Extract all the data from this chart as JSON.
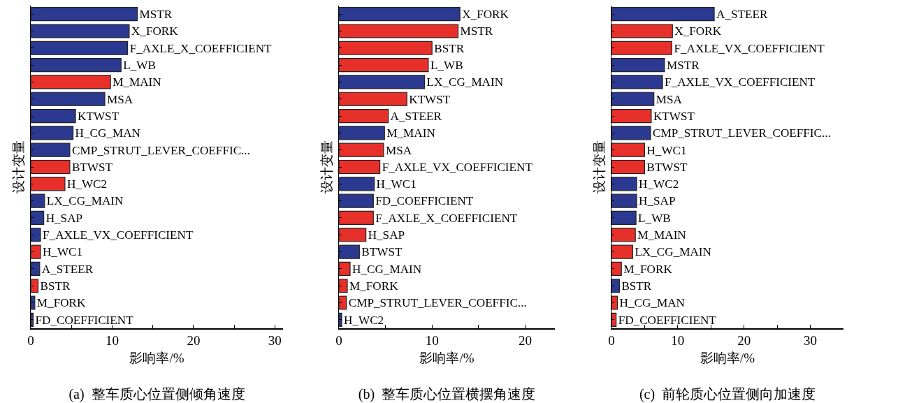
{
  "chart_data": [
    {
      "type": "bar",
      "orientation": "horizontal",
      "title": "(a)  整车质心位置侧倾角速度",
      "xlabel": "影响率/%",
      "ylabel": "设计变量",
      "grid": false,
      "legend": false,
      "tick_labels": "x",
      "categories": [
        "MSTR",
        "X_FORK",
        "F_AXLE_X_COEFFICIENT",
        "L_WB",
        "M_MAIN",
        "MSA",
        "KTWST",
        "H_CG_MAN",
        "CMP_STRUT_LEVER_COEFFIC...",
        "BTWST",
        "H_WC2",
        "LX_CG_MAIN",
        "H_SAP",
        "F_AXLE_VX_COEFFICIENT",
        "H_WC1",
        "A_STEER",
        "BSTR",
        "M_FORK",
        "FD_COEFFICIENT"
      ],
      "values": [
        13.1,
        12.1,
        11.9,
        11.1,
        9.8,
        9.1,
        5.5,
        5.2,
        4.8,
        4.8,
        4.2,
        1.7,
        1.6,
        1.2,
        1.2,
        1.1,
        0.9,
        0.5,
        0.3
      ],
      "colors": [
        "#2b3990",
        "#2b3990",
        "#2b3990",
        "#2b3990",
        "#e8302a",
        "#2b3990",
        "#2b3990",
        "#2b3990",
        "#2b3990",
        "#e8302a",
        "#e8302a",
        "#2b3990",
        "#2b3990",
        "#2b3990",
        "#e8302a",
        "#2b3990",
        "#e8302a",
        "#2b3990",
        "#2b3990"
      ],
      "xlim": [
        0,
        31
      ],
      "xticks": [
        0,
        {
          "value": 5,
          "label": null
        },
        10,
        {
          "value": 15,
          "label": null
        },
        20,
        {
          "value": 25,
          "label": null
        },
        30
      ]
    },
    {
      "type": "bar",
      "orientation": "horizontal",
      "title": "(b)  整车质心位置横摆角速度",
      "xlabel": "影响率/%",
      "ylabel": "设计变量",
      "grid": false,
      "legend": false,
      "tick_labels": "x",
      "categories": [
        "X_FORK",
        "MSTR",
        "BSTR",
        "L_WB",
        "LX_CG_MAIN",
        "KTWST",
        "A_STEER",
        "M_MAIN",
        "MSA",
        "F_AXLE_VX_COEFFICIENT",
        "H_WC1",
        "FD_COEFFICIENT",
        "F_AXLE_X_COEFFICIENT",
        "H_SAP",
        "BTWST",
        "H_CG_MAIN",
        "M_FORK",
        "CMP_STRUT_LEVER_COEFFIC...",
        "H_WC2"
      ],
      "values": [
        13.0,
        12.8,
        10.0,
        9.6,
        9.2,
        7.3,
        5.3,
        4.9,
        4.8,
        4.4,
        3.8,
        3.7,
        3.7,
        2.9,
        2.2,
        1.2,
        0.9,
        0.8,
        0.3
      ],
      "colors": [
        "#2b3990",
        "#e8302a",
        "#e8302a",
        "#e8302a",
        "#2b3990",
        "#e8302a",
        "#e8302a",
        "#2b3990",
        "#e8302a",
        "#e8302a",
        "#2b3990",
        "#2b3990",
        "#e8302a",
        "#e8302a",
        "#2b3990",
        "#e8302a",
        "#e8302a",
        "#e8302a",
        "#2b3990"
      ],
      "xlim": [
        0,
        23.2
      ],
      "xticks": [
        0,
        {
          "value": 5,
          "label": null
        },
        10,
        {
          "value": 15,
          "label": null
        },
        20
      ]
    },
    {
      "type": "bar",
      "orientation": "horizontal",
      "title": "(c)  前轮质心位置侧向加速度",
      "xlabel": "影响率/%",
      "ylabel": "设计变量",
      "grid": false,
      "legend": false,
      "tick_labels": "x",
      "categories": [
        "A_STEER",
        "X_FORK",
        "F_AXLE_VX_COEFFICIENT",
        "MSTR",
        "F_AXLE_VX_COEFFICIENT",
        "MSA",
        "KTWST",
        "CMP_STRUT_LEVER_COEFFIC...",
        "H_WC1",
        "BTWST",
        "H_WC2",
        "H_SAP",
        "L_WB",
        "M_MAIN",
        "LX_CG_MAIN",
        "M_FORK",
        "BSTR",
        "H_CG_MAN",
        "FD_COEFFICIENT"
      ],
      "values": [
        15.5,
        9.2,
        9.1,
        8.0,
        7.7,
        6.4,
        6.0,
        5.9,
        5.0,
        5.0,
        3.8,
        3.8,
        3.7,
        3.6,
        3.2,
        1.5,
        1.2,
        0.9,
        0.7
      ],
      "colors": [
        "#2b3990",
        "#e8302a",
        "#e8302a",
        "#2b3990",
        "#2b3990",
        "#2b3990",
        "#e8302a",
        "#2b3990",
        "#e8302a",
        "#e8302a",
        "#2b3990",
        "#2b3990",
        "#2b3990",
        "#e8302a",
        "#e8302a",
        "#e8302a",
        "#2b3990",
        "#e8302a",
        "#e8302a"
      ],
      "xlim": [
        0,
        35
      ],
      "xticks": [
        0,
        {
          "value": 5,
          "label": null
        },
        10,
        {
          "value": 15,
          "label": null
        },
        20,
        {
          "value": 25,
          "label": null
        },
        30
      ]
    }
  ]
}
